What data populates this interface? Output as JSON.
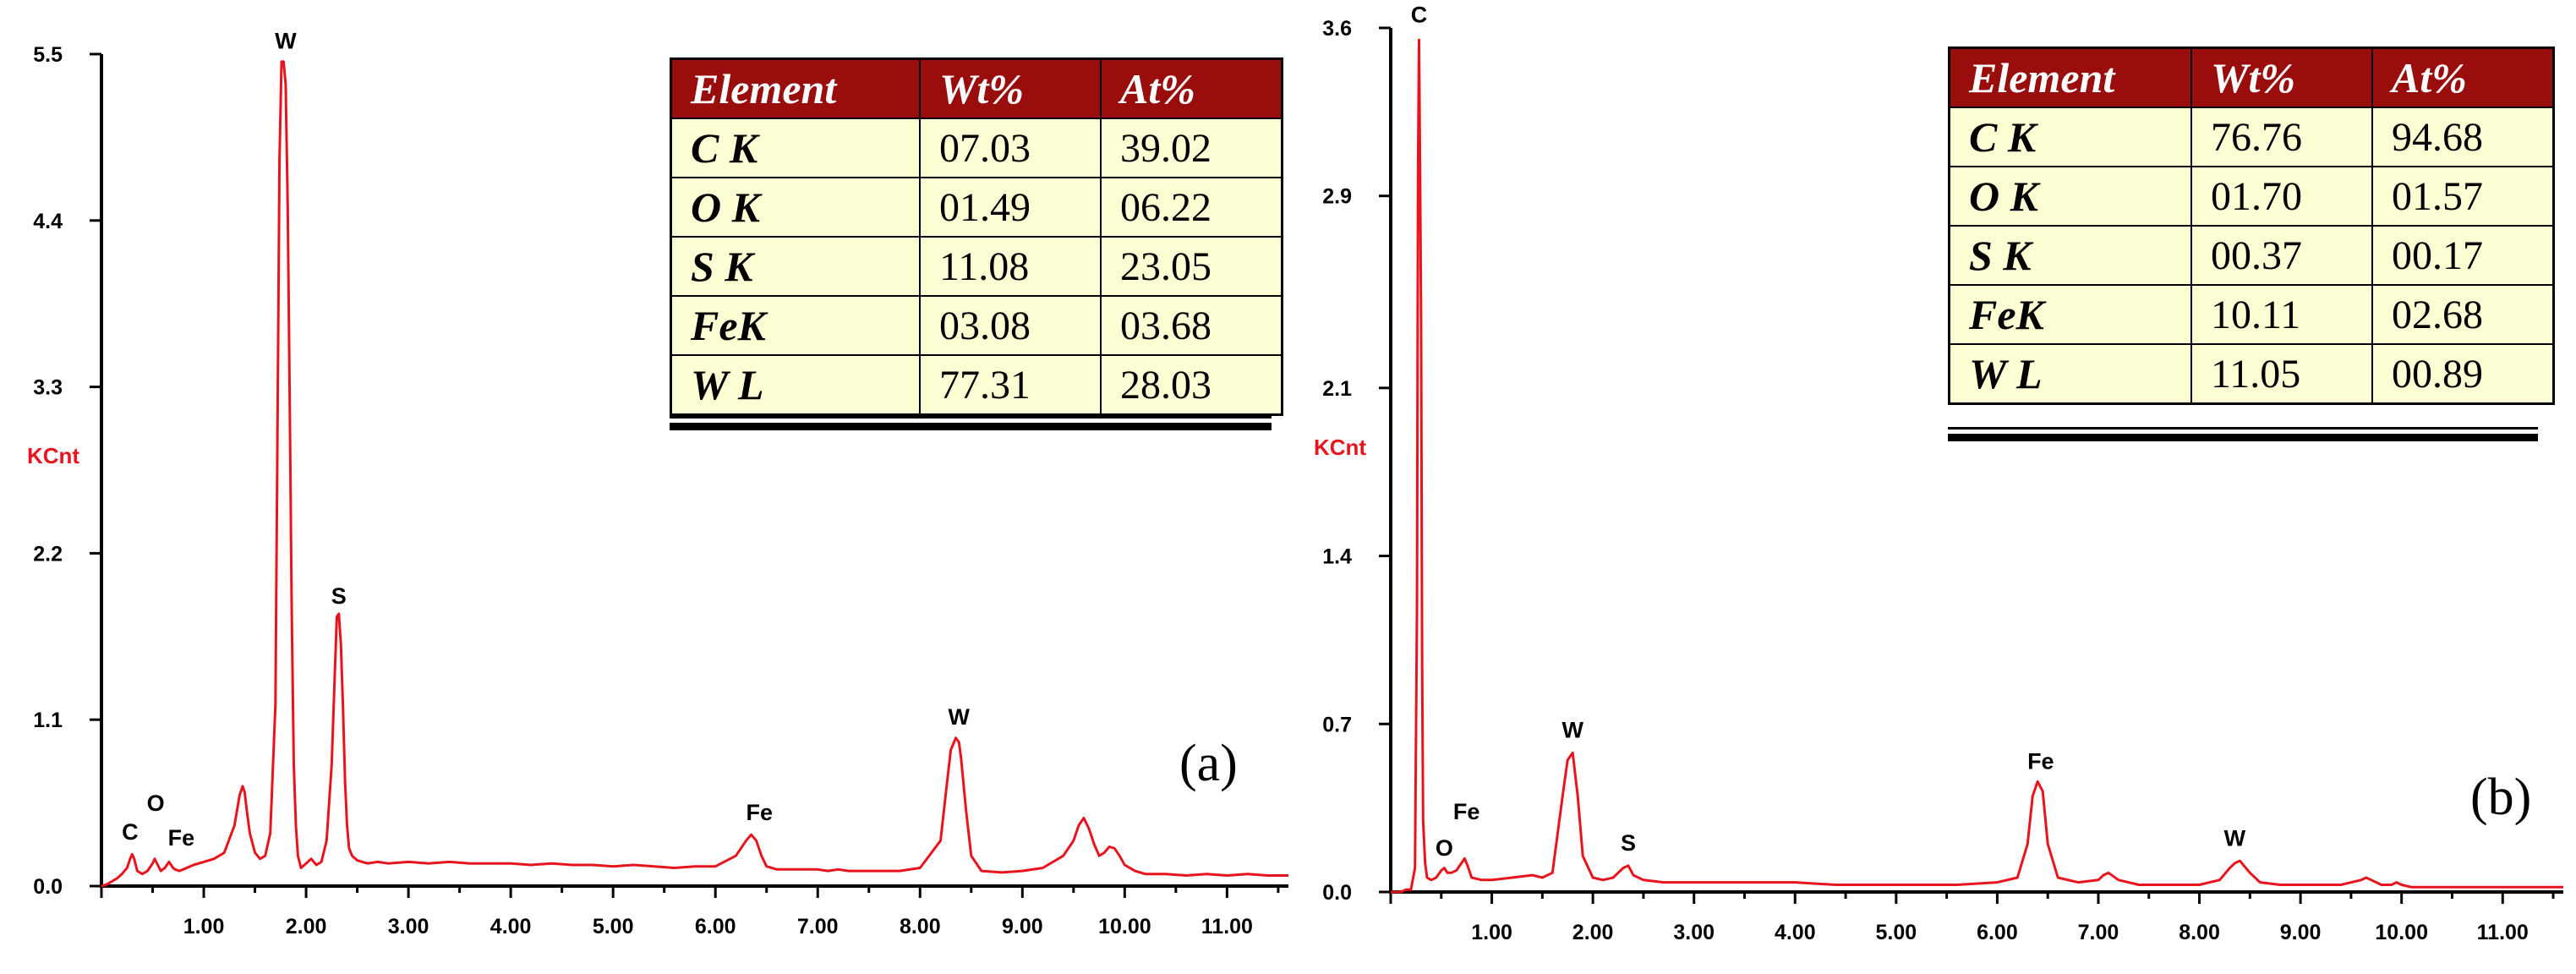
{
  "chart_data": [
    {
      "type": "line",
      "panel_label": "(a)",
      "ylabel": "KCnt",
      "xlim": [
        0,
        11.6
      ],
      "ylim": [
        0,
        5.5
      ],
      "xticks": [
        "1.00",
        "2.00",
        "3.00",
        "4.00",
        "5.00",
        "6.00",
        "7.00",
        "8.00",
        "9.00",
        "10.00",
        "11.00"
      ],
      "yticks": [
        "0.0",
        "1.1",
        "2.2",
        "3.3",
        "4.4",
        "5.5"
      ],
      "series": [
        {
          "color": "#e8141d",
          "x": [
            0.0,
            0.05,
            0.1,
            0.15,
            0.2,
            0.25,
            0.28,
            0.3,
            0.32,
            0.35,
            0.4,
            0.45,
            0.5,
            0.52,
            0.55,
            0.58,
            0.62,
            0.66,
            0.68,
            0.7,
            0.72,
            0.76,
            0.8,
            0.9,
            1.0,
            1.1,
            1.2,
            1.3,
            1.35,
            1.38,
            1.4,
            1.42,
            1.45,
            1.5,
            1.55,
            1.6,
            1.65,
            1.7,
            1.72,
            1.74,
            1.76,
            1.78,
            1.8,
            1.82,
            1.84,
            1.86,
            1.88,
            1.9,
            1.92,
            1.95,
            2.0,
            2.05,
            2.1,
            2.15,
            2.2,
            2.25,
            2.28,
            2.3,
            2.32,
            2.34,
            2.36,
            2.38,
            2.4,
            2.42,
            2.45,
            2.5,
            2.55,
            2.6,
            2.7,
            2.8,
            3.0,
            3.2,
            3.4,
            3.6,
            3.8,
            4.0,
            4.2,
            4.4,
            4.6,
            4.8,
            5.0,
            5.2,
            5.4,
            5.6,
            5.8,
            6.0,
            6.2,
            6.3,
            6.35,
            6.4,
            6.45,
            6.5,
            6.6,
            6.8,
            7.0,
            7.1,
            7.2,
            7.3,
            7.4,
            7.6,
            7.8,
            8.0,
            8.2,
            8.25,
            8.3,
            8.35,
            8.38,
            8.4,
            8.45,
            8.5,
            8.6,
            8.8,
            9.0,
            9.2,
            9.4,
            9.5,
            9.55,
            9.6,
            9.65,
            9.7,
            9.75,
            9.8,
            9.85,
            9.9,
            9.95,
            10.0,
            10.1,
            10.2,
            10.4,
            10.6,
            10.8,
            11.0,
            11.2,
            11.4,
            11.6
          ],
          "y": [
            0.0,
            0.01,
            0.03,
            0.05,
            0.08,
            0.12,
            0.18,
            0.21,
            0.18,
            0.1,
            0.08,
            0.1,
            0.15,
            0.18,
            0.14,
            0.1,
            0.12,
            0.16,
            0.14,
            0.12,
            0.11,
            0.1,
            0.11,
            0.14,
            0.16,
            0.18,
            0.22,
            0.4,
            0.6,
            0.66,
            0.62,
            0.5,
            0.35,
            0.22,
            0.18,
            0.2,
            0.35,
            1.2,
            3.0,
            4.8,
            5.45,
            5.45,
            5.3,
            4.5,
            3.2,
            1.8,
            0.8,
            0.4,
            0.2,
            0.12,
            0.15,
            0.18,
            0.14,
            0.16,
            0.3,
            0.8,
            1.4,
            1.78,
            1.8,
            1.6,
            1.2,
            0.7,
            0.4,
            0.25,
            0.2,
            0.17,
            0.16,
            0.15,
            0.16,
            0.15,
            0.16,
            0.15,
            0.16,
            0.15,
            0.15,
            0.15,
            0.14,
            0.15,
            0.14,
            0.14,
            0.13,
            0.14,
            0.13,
            0.12,
            0.13,
            0.13,
            0.2,
            0.3,
            0.34,
            0.3,
            0.2,
            0.13,
            0.11,
            0.11,
            0.11,
            0.1,
            0.11,
            0.1,
            0.1,
            0.1,
            0.1,
            0.12,
            0.3,
            0.6,
            0.9,
            0.98,
            0.95,
            0.85,
            0.5,
            0.2,
            0.1,
            0.09,
            0.1,
            0.12,
            0.2,
            0.3,
            0.4,
            0.45,
            0.38,
            0.28,
            0.2,
            0.22,
            0.26,
            0.25,
            0.2,
            0.14,
            0.1,
            0.08,
            0.08,
            0.07,
            0.08,
            0.07,
            0.08,
            0.07,
            0.07
          ]
        }
      ],
      "peak_labels": [
        {
          "text": "C",
          "x": 0.28,
          "y": 0.24
        },
        {
          "text": "O",
          "x": 0.53,
          "y": 0.43
        },
        {
          "text": "Fe",
          "x": 0.78,
          "y": 0.2
        },
        {
          "text": "W",
          "x": 1.8,
          "y": 5.47
        },
        {
          "text": "S",
          "x": 2.32,
          "y": 1.8
        },
        {
          "text": "Fe",
          "x": 6.43,
          "y": 0.37
        },
        {
          "text": "W",
          "x": 8.38,
          "y": 1.0
        }
      ],
      "table": {
        "headers": [
          "Element",
          "Wt%",
          "At%"
        ],
        "rows": [
          [
            "C K",
            "07.03",
            "39.02"
          ],
          [
            "O K",
            "01.49",
            "06.22"
          ],
          [
            "S K",
            "11.08",
            "23.05"
          ],
          [
            "FeK",
            "03.08",
            "03.68"
          ],
          [
            "W L",
            "77.31",
            "28.03"
          ]
        ]
      }
    },
    {
      "type": "line",
      "panel_label": "(b)",
      "ylabel": "KCnt",
      "xlim": [
        0,
        11.6
      ],
      "ylim": [
        0,
        3.6
      ],
      "xticks": [
        "1.00",
        "2.00",
        "3.00",
        "4.00",
        "5.00",
        "6.00",
        "7.00",
        "8.00",
        "9.00",
        "10.00",
        "11.00"
      ],
      "yticks": [
        "0.0",
        "0.7",
        "1.4",
        "2.1",
        "2.9",
        "3.6"
      ],
      "series": [
        {
          "color": "#e8141d",
          "x": [
            0.0,
            0.05,
            0.1,
            0.15,
            0.2,
            0.24,
            0.26,
            0.27,
            0.28,
            0.29,
            0.3,
            0.31,
            0.32,
            0.34,
            0.36,
            0.4,
            0.45,
            0.5,
            0.53,
            0.56,
            0.6,
            0.65,
            0.7,
            0.73,
            0.76,
            0.8,
            0.9,
            1.0,
            1.2,
            1.4,
            1.5,
            1.6,
            1.7,
            1.75,
            1.8,
            1.85,
            1.9,
            2.0,
            2.1,
            2.2,
            2.3,
            2.35,
            2.4,
            2.5,
            2.7,
            3.0,
            3.3,
            3.6,
            4.0,
            4.4,
            4.8,
            5.2,
            5.6,
            6.0,
            6.2,
            6.3,
            6.35,
            6.4,
            6.45,
            6.5,
            6.6,
            6.8,
            7.0,
            7.05,
            7.1,
            7.2,
            7.4,
            7.6,
            7.8,
            8.0,
            8.2,
            8.3,
            8.35,
            8.4,
            8.5,
            8.6,
            8.8,
            9.0,
            9.2,
            9.4,
            9.6,
            9.65,
            9.7,
            9.8,
            9.9,
            9.95,
            10.0,
            10.1,
            10.4,
            10.8,
            11.2,
            11.6
          ],
          "y": [
            0.0,
            0.0,
            0.0,
            0.01,
            0.01,
            0.1,
            1.2,
            3.0,
            3.55,
            3.0,
            2.4,
            1.0,
            0.3,
            0.12,
            0.06,
            0.05,
            0.06,
            0.09,
            0.1,
            0.08,
            0.08,
            0.09,
            0.12,
            0.14,
            0.11,
            0.06,
            0.05,
            0.05,
            0.06,
            0.07,
            0.06,
            0.08,
            0.4,
            0.55,
            0.58,
            0.4,
            0.15,
            0.06,
            0.05,
            0.06,
            0.1,
            0.11,
            0.07,
            0.05,
            0.04,
            0.04,
            0.04,
            0.04,
            0.04,
            0.03,
            0.03,
            0.03,
            0.03,
            0.04,
            0.06,
            0.2,
            0.4,
            0.46,
            0.42,
            0.2,
            0.06,
            0.04,
            0.05,
            0.07,
            0.08,
            0.05,
            0.03,
            0.03,
            0.03,
            0.03,
            0.05,
            0.1,
            0.12,
            0.13,
            0.08,
            0.04,
            0.03,
            0.03,
            0.03,
            0.03,
            0.05,
            0.06,
            0.05,
            0.03,
            0.03,
            0.04,
            0.03,
            0.02,
            0.02,
            0.02,
            0.02,
            0.02
          ]
        }
      ],
      "peak_labels": [
        {
          "text": "C",
          "x": 0.28,
          "y": 3.58
        },
        {
          "text": "O",
          "x": 0.53,
          "y": 0.11
        },
        {
          "text": "Fe",
          "x": 0.75,
          "y": 0.26
        },
        {
          "text": "W",
          "x": 1.8,
          "y": 0.6
        },
        {
          "text": "S",
          "x": 2.35,
          "y": 0.13
        },
        {
          "text": "Fe",
          "x": 6.43,
          "y": 0.47
        },
        {
          "text": "W",
          "x": 8.35,
          "y": 0.15
        }
      ],
      "table": {
        "headers": [
          "Element",
          "Wt%",
          "At%"
        ],
        "rows": [
          [
            "C K",
            "76.76",
            "94.68"
          ],
          [
            "O K",
            "01.70",
            "01.57"
          ],
          [
            "S K",
            "00.37",
            "00.17"
          ],
          [
            "FeK",
            "10.11",
            "02.68"
          ],
          [
            "W L",
            "11.05",
            "00.89"
          ]
        ]
      }
    }
  ]
}
